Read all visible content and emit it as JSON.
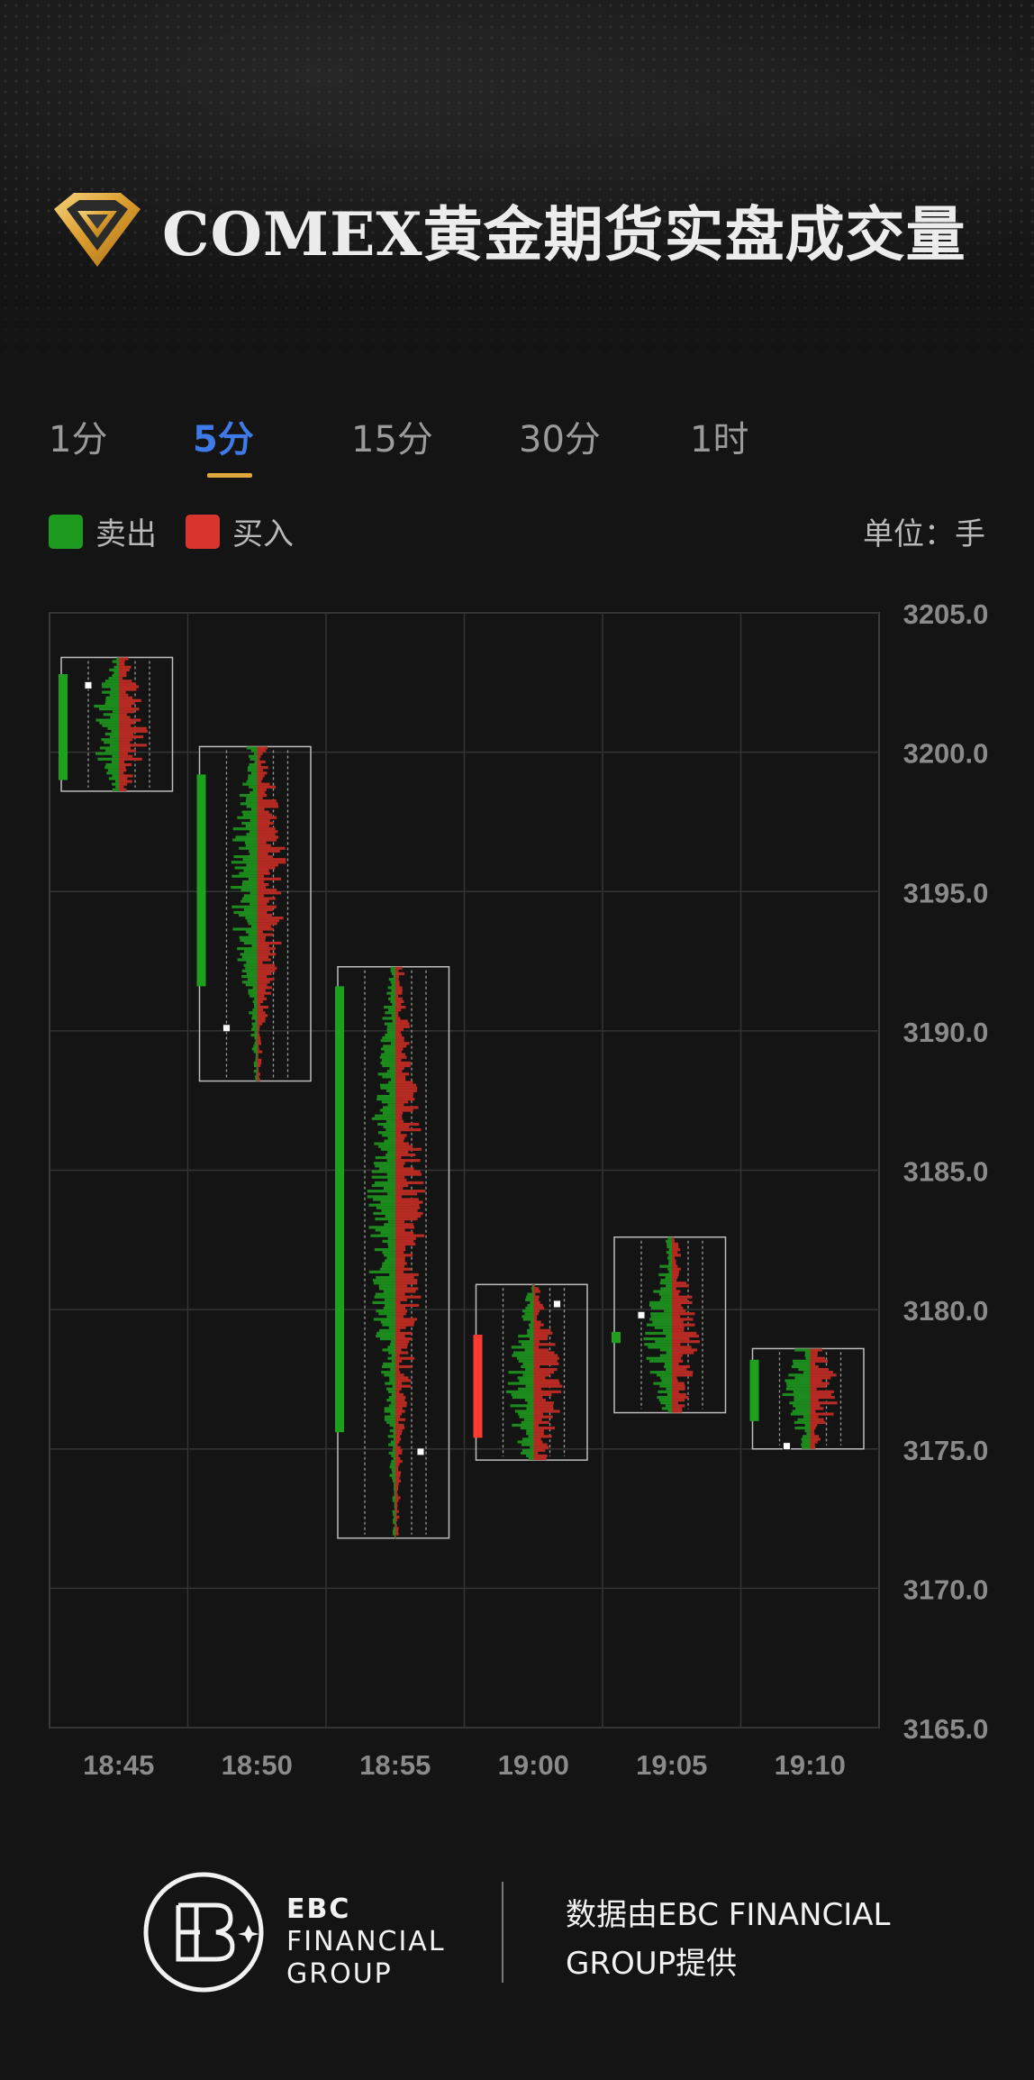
{
  "header": {
    "title": "COMEX黄金期货实盘成交量"
  },
  "tabs": [
    {
      "label": "1分",
      "active": false
    },
    {
      "label": "5分",
      "active": true
    },
    {
      "label": "15分",
      "active": false
    },
    {
      "label": "30分",
      "active": false
    },
    {
      "label": "1时",
      "active": false
    }
  ],
  "legend": {
    "sell_label": "卖出",
    "buy_label": "买入",
    "unit_label": "单位：手"
  },
  "colors": {
    "sell": "#1e9a1e",
    "buy": "#d8362c",
    "active_tab": "#3e7ae8",
    "tab_underline": "#e0a73b",
    "background": "#141414"
  },
  "chart_data": {
    "type": "candlestick-footprint",
    "categories": [
      "18:45",
      "18:50",
      "18:55",
      "19:00",
      "19:05",
      "19:10"
    ],
    "ylim": [
      3165.0,
      3205.0
    ],
    "y_ticks": [
      "3205.0",
      "3200.0",
      "3195.0",
      "3190.0",
      "3185.0",
      "3180.0",
      "3175.0",
      "3170.0",
      "3165.0"
    ],
    "grid": true,
    "candles": [
      {
        "time": "18:45",
        "open": 3202.8,
        "close": 3199.0,
        "high": 3203.4,
        "low": 3198.6,
        "poc": 3202.4,
        "direction": "sell"
      },
      {
        "time": "18:50",
        "open": 3199.2,
        "close": 3191.6,
        "high": 3200.2,
        "low": 3188.2,
        "poc": 3190.1,
        "direction": "sell"
      },
      {
        "time": "18:55",
        "open": 3191.6,
        "close": 3175.6,
        "high": 3192.3,
        "low": 3171.8,
        "poc": 3174.9,
        "direction": "sell"
      },
      {
        "time": "19:00",
        "open": 3175.4,
        "close": 3179.1,
        "high": 3180.9,
        "low": 3174.6,
        "poc": 3180.2,
        "direction": "buy"
      },
      {
        "time": "19:05",
        "open": 3179.2,
        "close": 3178.8,
        "high": 3182.6,
        "low": 3176.3,
        "poc": 3179.8,
        "direction": "sell"
      },
      {
        "time": "19:10",
        "open": 3178.2,
        "close": 3176.0,
        "high": 3178.6,
        "low": 3175.0,
        "poc": 3175.1,
        "direction": "sell"
      }
    ]
  },
  "footer": {
    "brand_line1": "EBC",
    "brand_line2": "FINANCIAL",
    "brand_line3": "GROUP",
    "provider_line1": "数据由EBC FINANCIAL",
    "provider_line2": "GROUP提供"
  }
}
